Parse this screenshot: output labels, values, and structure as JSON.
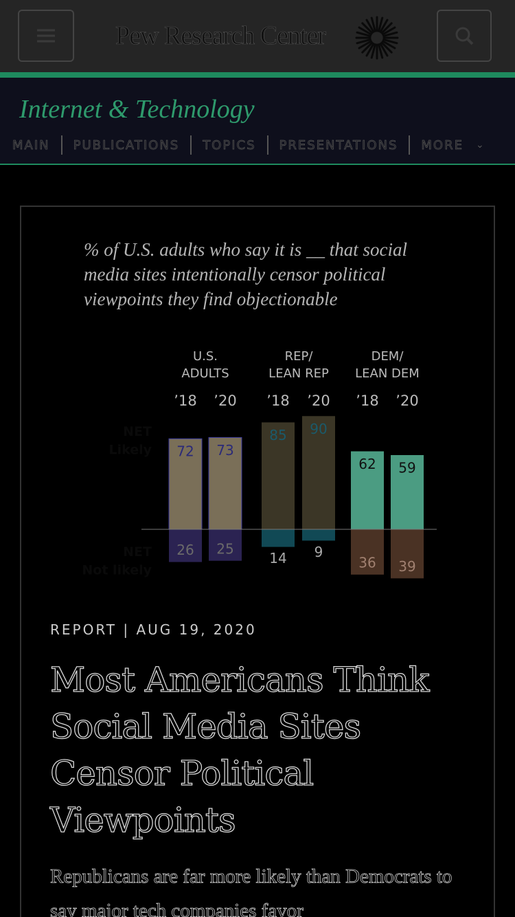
{
  "header": {
    "logo": "Pew Research Center"
  },
  "section": {
    "title": "Internet & Technology",
    "nav": [
      "MAIN",
      "PUBLICATIONS",
      "TOPICS",
      "PRESENTATIONS",
      "MORE"
    ]
  },
  "chart_data": {
    "type": "bar",
    "subtitle": "% of U.S. adults who say it is __ that social media sites intentionally censor political viewpoints they find objectionable",
    "groups": [
      "U.S.\nADULTS",
      "REP/\nLEAN REP",
      "DEM/\nLEAN DEM"
    ],
    "categories": [
      "’18",
      "’20",
      "’18",
      "’20",
      "’18",
      "’20"
    ],
    "series": [
      {
        "name": "NET\nLikely",
        "colors": [
          "#7a6f58",
          "#7a6f58",
          "#3b3626",
          "#3b3626",
          "#4b9c82",
          "#4b9c82"
        ],
        "values": [
          72,
          73,
          85,
          90,
          62,
          59
        ]
      },
      {
        "name": "NET\nNot likely",
        "colors": [
          "#2b2352",
          "#2b2352",
          "#114955",
          "#114955",
          "#4a3224",
          "#4a3224"
        ],
        "values": [
          26,
          25,
          14,
          9,
          36,
          39
        ]
      }
    ]
  },
  "article": {
    "label": "REPORT",
    "date": "AUG 19, 2020",
    "title": "Most Americans Think Social Media Sites Censor Political Viewpoints",
    "summary": "Republicans are far more likely than Democrats to say major tech companies favor"
  }
}
